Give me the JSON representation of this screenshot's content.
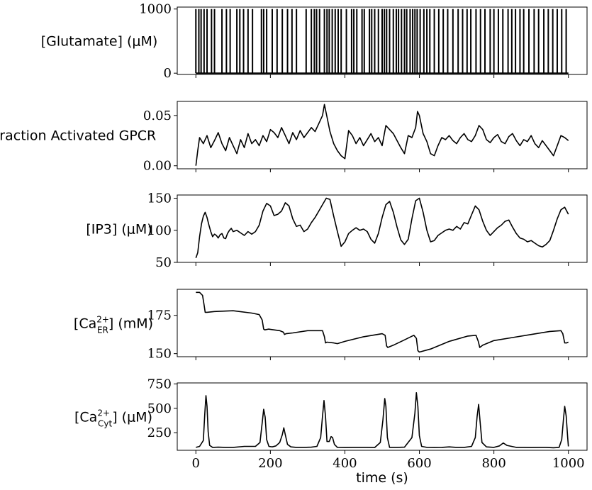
{
  "chart_data": {
    "type": "line",
    "x_axis": {
      "label": "time (s)",
      "ticks": [
        0,
        200,
        400,
        600,
        800,
        1000
      ],
      "tick_labels": [
        "0",
        "200",
        "400",
        "600",
        "800",
        "1000"
      ],
      "range": [
        -50,
        1050
      ]
    },
    "panels": [
      {
        "id": "glutamate",
        "ylabel": "[Glutamate] (μM)",
        "ylim": [
          -20,
          1030
        ],
        "yticks": [
          0,
          1000
        ],
        "ytick_labels": [
          "0",
          "1000"
        ],
        "style": "spikes",
        "series": [
          {
            "spike_times": [
              0,
              8,
              14,
              22,
              30,
              42,
              50,
              70,
              82,
              92,
              110,
              118,
              128,
              140,
              152,
              176,
              182,
              190,
              205,
              218,
              232,
              246,
              258,
              270,
              296,
              310,
              318,
              324,
              332,
              345,
              352,
              358,
              366,
              374,
              382,
              390,
              404,
              418,
              424,
              432,
              446,
              452,
              466,
              472,
              480,
              490,
              500,
              506,
              512,
              520,
              530,
              538,
              544,
              552,
              560,
              566,
              575,
              582,
              588,
              594,
              602,
              612,
              620,
              628,
              640,
              652,
              664,
              676,
              690,
              704,
              716,
              728,
              738,
              752,
              764,
              776,
              790,
              800,
              812,
              824,
              838,
              848,
              858,
              870,
              880,
              894,
              908,
              920,
              934,
              946,
              958,
              970,
              982,
              994
            ],
            "baseline": 0,
            "amplitude": 1000
          }
        ]
      },
      {
        "id": "gpcr",
        "ylabel": "Fraction Activated GPCR",
        "ylim": [
          -0.003,
          0.064
        ],
        "yticks": [
          0.0,
          0.05
        ],
        "ytick_labels": [
          "0.00",
          "0.05"
        ],
        "style": "line",
        "series": [
          {
            "x": [
              0,
              5,
              10,
              20,
              30,
              40,
              50,
              60,
              70,
              80,
              90,
              100,
              110,
              120,
              130,
              140,
              150,
              160,
              170,
              180,
              190,
              200,
              210,
              220,
              230,
              240,
              250,
              260,
              270,
              280,
              290,
              300,
              310,
              320,
              330,
              340,
              345,
              350,
              360,
              370,
              380,
              390,
              400,
              410,
              420,
              430,
              440,
              450,
              460,
              470,
              480,
              490,
              500,
              510,
              520,
              530,
              540,
              550,
              560,
              570,
              580,
              590,
              595,
              600,
              610,
              620,
              630,
              640,
              650,
              660,
              670,
              680,
              690,
              700,
              710,
              720,
              730,
              740,
              750,
              760,
              770,
              780,
              790,
              800,
              810,
              820,
              830,
              840,
              850,
              860,
              870,
              880,
              890,
              900,
              910,
              920,
              930,
              940,
              950,
              960,
              970,
              980,
              990,
              1000
            ],
            "y": [
              0.0,
              0.015,
              0.028,
              0.022,
              0.03,
              0.018,
              0.025,
              0.033,
              0.022,
              0.015,
              0.028,
              0.02,
              0.012,
              0.026,
              0.018,
              0.032,
              0.022,
              0.026,
              0.02,
              0.03,
              0.024,
              0.036,
              0.033,
              0.028,
              0.038,
              0.03,
              0.022,
              0.033,
              0.026,
              0.035,
              0.028,
              0.033,
              0.038,
              0.034,
              0.042,
              0.05,
              0.061,
              0.052,
              0.034,
              0.022,
              0.015,
              0.01,
              0.007,
              0.035,
              0.03,
              0.022,
              0.028,
              0.02,
              0.026,
              0.032,
              0.024,
              0.028,
              0.02,
              0.04,
              0.036,
              0.032,
              0.025,
              0.018,
              0.012,
              0.03,
              0.028,
              0.038,
              0.054,
              0.05,
              0.032,
              0.024,
              0.012,
              0.01,
              0.02,
              0.028,
              0.026,
              0.03,
              0.025,
              0.022,
              0.028,
              0.032,
              0.026,
              0.024,
              0.03,
              0.04,
              0.036,
              0.026,
              0.023,
              0.028,
              0.031,
              0.024,
              0.022,
              0.029,
              0.032,
              0.025,
              0.02,
              0.026,
              0.024,
              0.03,
              0.022,
              0.018,
              0.025,
              0.02,
              0.015,
              0.01,
              0.02,
              0.03,
              0.028,
              0.025
            ]
          }
        ]
      },
      {
        "id": "ip3",
        "ylabel": "[IP3] (μM)",
        "ylim": [
          50,
          155
        ],
        "yticks": [
          50,
          100,
          150
        ],
        "ytick_labels": [
          "50",
          "100",
          "150"
        ],
        "style": "line",
        "series": [
          {
            "x": [
              0,
              5,
              10,
              15,
              20,
              25,
              30,
              35,
              40,
              45,
              50,
              55,
              60,
              65,
              70,
              75,
              80,
              85,
              90,
              95,
              100,
              110,
              120,
              130,
              140,
              150,
              160,
              170,
              180,
              190,
              200,
              210,
              220,
              230,
              240,
              250,
              260,
              270,
              280,
              290,
              300,
              310,
              320,
              330,
              340,
              350,
              360,
              370,
              380,
              390,
              400,
              410,
              420,
              430,
              440,
              450,
              460,
              470,
              480,
              490,
              500,
              510,
              520,
              530,
              540,
              550,
              560,
              570,
              580,
              590,
              600,
              610,
              620,
              630,
              640,
              650,
              660,
              670,
              680,
              690,
              700,
              710,
              720,
              730,
              740,
              750,
              760,
              770,
              780,
              790,
              800,
              810,
              820,
              830,
              840,
              850,
              860,
              870,
              880,
              890,
              900,
              910,
              920,
              930,
              940,
              950,
              960,
              970,
              980,
              990,
              1000
            ],
            "y": [
              57,
              65,
              90,
              110,
              122,
              128,
              120,
              108,
              98,
              90,
              94,
              92,
              88,
              93,
              95,
              88,
              87,
              95,
              100,
              103,
              98,
              100,
              96,
              92,
              98,
              94,
              98,
              108,
              130,
              142,
              138,
              123,
              125,
              130,
              143,
              138,
              118,
              106,
              108,
              98,
              102,
              112,
              120,
              130,
              140,
              150,
              148,
              122,
              98,
              75,
              82,
              95,
              100,
              104,
              100,
              102,
              98,
              86,
              80,
              95,
              120,
              140,
              145,
              128,
              105,
              85,
              78,
              86,
              118,
              146,
              150,
              128,
              100,
              82,
              84,
              92,
              96,
              100,
              102,
              100,
              106,
              102,
              112,
              110,
              124,
              138,
              132,
              114,
              100,
              92,
              98,
              104,
              108,
              114,
              116,
              105,
              95,
              88,
              86,
              82,
              84,
              80,
              76,
              74,
              78,
              84,
              100,
              118,
              132,
              136,
              125
            ]
          }
        ]
      },
      {
        "id": "ca-er",
        "ylabel": "[Ca_ER^2+] (mM)",
        "ylabel_parts": [
          "[Ca",
          "2+",
          "ER",
          "] (mM)"
        ],
        "ylim": [
          148,
          192
        ],
        "yticks": [
          150,
          175
        ],
        "ytick_labels": [
          "150",
          "175"
        ],
        "style": "line",
        "series": [
          {
            "x": [
              0,
              10,
              18,
              22,
              25,
              30,
              50,
              100,
              150,
              170,
              178,
              182,
              185,
              195,
              225,
              235,
              238,
              242,
              260,
              300,
              340,
              345,
              348,
              352,
              370,
              380,
              400,
              450,
              500,
              508,
              512,
              515,
              530,
              560,
              585,
              592,
              596,
              600,
              630,
              680,
              730,
              752,
              758,
              762,
              770,
              800,
              850,
              900,
              950,
              980,
              985,
              990,
              995,
              1000
            ],
            "y": [
              190,
              190,
              188,
              182,
              177,
              177,
              177.5,
              178,
              176.5,
              175.5,
              172,
              166,
              165.5,
              166,
              165,
              164,
              162.5,
              163,
              163.5,
              165,
              165,
              161,
              157,
              157.5,
              157,
              156.5,
              158,
              161,
              163,
              162,
              155,
              154,
              155.5,
              159,
              162,
              160,
              152,
              151,
              153,
              158,
              161.5,
              162,
              158,
              154,
              155.5,
              158.5,
              160.5,
              162.5,
              164.5,
              165,
              163,
              157,
              157,
              157.5
            ]
          }
        ]
      },
      {
        "id": "ca-cyt",
        "ylabel": "[Ca_Cyt^2+] (μM)",
        "ylabel_parts": [
          "[Ca",
          "2+",
          "Cyt",
          "] (μM)"
        ],
        "ylim": [
          70,
          760
        ],
        "yticks": [
          250,
          500,
          750
        ],
        "ytick_labels": [
          "250",
          "500",
          "750"
        ],
        "style": "line",
        "series": [
          {
            "x": [
              0,
              10,
              20,
              24,
              27,
              30,
              33,
              37,
              45,
              60,
              80,
              100,
              130,
              160,
              172,
              178,
              182,
              186,
              190,
              196,
              205,
              215,
              225,
              232,
              236,
              240,
              246,
              255,
              270,
              290,
              310,
              325,
              335,
              340,
              344,
              348,
              352,
              358,
              363,
              367,
              372,
              380,
              400,
              420,
              440,
              460,
              480,
              495,
              502,
              507,
              510,
              514,
              520,
              540,
              560,
              580,
              588,
              592,
              596,
              600,
              606,
              620,
              640,
              660,
              680,
              700,
              720,
              740,
              750,
              755,
              759,
              763,
              768,
              780,
              800,
              815,
              825,
              835,
              860,
              880,
              900,
              920,
              940,
              960,
              975,
              982,
              987,
              990,
              994,
              998,
              1000
            ],
            "y": [
              100,
              110,
              170,
              450,
              630,
              520,
              260,
              120,
              100,
              102,
              100,
              100,
              110,
              110,
              150,
              350,
              490,
              410,
              180,
              110,
              105,
              115,
              150,
              230,
              300,
              230,
              130,
              105,
              100,
              100,
              102,
              110,
              200,
              420,
              580,
              420,
              160,
              160,
              210,
              200,
              130,
              100,
              98,
              100,
              100,
              100,
              98,
              150,
              380,
              600,
              520,
              200,
              100,
              100,
              102,
              200,
              450,
              660,
              520,
              220,
              110,
              100,
              98,
              100,
              105,
              100,
              100,
              110,
              200,
              420,
              540,
              360,
              150,
              105,
              100,
              115,
              145,
              120,
              100,
              100,
              98,
              100,
              100,
              96,
              100,
              180,
              400,
              520,
              420,
              200,
              110
            ]
          }
        ]
      }
    ]
  }
}
